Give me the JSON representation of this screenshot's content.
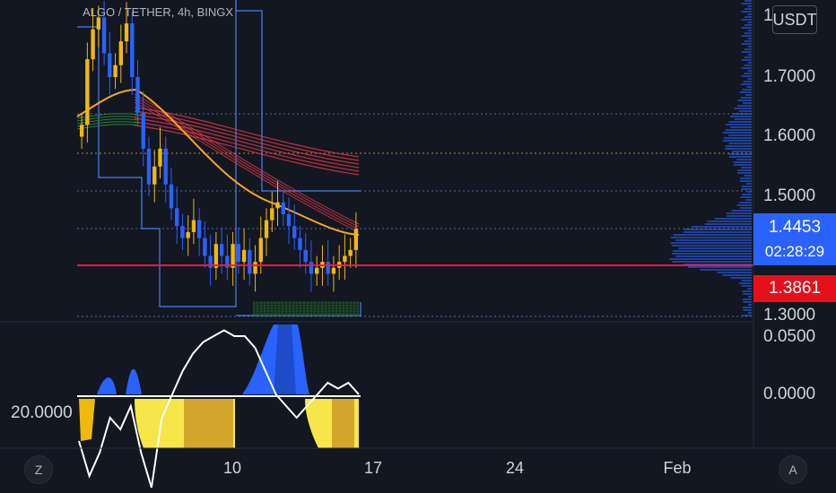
{
  "header": {
    "symbol_line": "ALGO / TETHER, 4h, BINGX",
    "currency_button": "USDT"
  },
  "price_axis": {
    "top_partial": "1",
    "ticks": [
      "1.7000",
      "1.6000",
      "1.5000",
      "1.3000"
    ],
    "last_price": "1.4453",
    "countdown": "02:28:29",
    "line_price": "1.3861"
  },
  "osc_axis": {
    "ticks": [
      "0.0500",
      "0.0000"
    ],
    "left_level": "20.0000"
  },
  "time_axis": {
    "ticks": [
      "10",
      "17",
      "24",
      "Feb"
    ]
  },
  "buttons": {
    "left": "Z",
    "right": "A"
  },
  "colors": {
    "background": "#131722",
    "up": "#f0b90b",
    "down": "#2962ff",
    "red_line": "#ff1744",
    "last_price_tag": "#2962ff",
    "line_tag": "#e5111a",
    "ribbon": "#e53946",
    "ema": "#f5a623"
  },
  "chart_data": {
    "type": "candlestick",
    "symbol": "ALGO / TETHER",
    "interval": "4h",
    "exchange": "BINGX",
    "y_range": [
      1.29,
      1.82
    ],
    "horizontal_line": 1.3861,
    "last_price": 1.4453,
    "x_ticks": [
      "10",
      "17",
      "24",
      "Feb"
    ],
    "close_path": [
      1.62,
      1.73,
      1.78,
      1.8,
      1.74,
      1.7,
      1.72,
      1.76,
      1.79,
      1.7,
      1.64,
      1.58,
      1.52,
      1.55,
      1.58,
      1.52,
      1.48,
      1.45,
      1.43,
      1.44,
      1.46,
      1.43,
      1.4,
      1.38,
      1.42,
      1.4,
      1.38,
      1.42,
      1.39,
      1.41,
      1.37,
      1.39,
      1.43,
      1.46,
      1.48,
      1.49,
      1.47,
      1.45,
      1.43,
      1.41,
      1.39,
      1.37,
      1.38,
      1.39,
      1.37,
      1.38,
      1.39,
      1.4,
      1.41,
      1.4453
    ],
    "oscillator": {
      "y_range": [
        -0.09,
        0.07
      ],
      "ticks": [
        0.05,
        0.0
      ],
      "white_line": [
        -0.04,
        -0.07,
        -0.05,
        -0.02,
        -0.03,
        -0.01,
        -0.05,
        -0.08,
        -0.02,
        0.0,
        0.02,
        0.035,
        0.045,
        0.05,
        0.055,
        0.05,
        0.05,
        0.04,
        0.02,
        0.0,
        -0.01,
        -0.02,
        -0.01,
        0.0,
        0.01,
        0.005,
        0.01,
        0.0
      ]
    }
  }
}
